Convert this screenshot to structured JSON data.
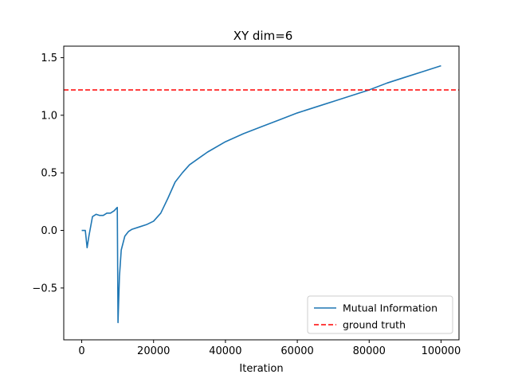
{
  "chart_data": {
    "type": "line",
    "title": "XY dim=6",
    "xlabel": "Iteration",
    "ylabel": "",
    "xlim": [
      -5000,
      105000
    ],
    "ylim": [
      -0.95,
      1.6
    ],
    "xticks": [
      0,
      20000,
      40000,
      60000,
      80000,
      100000
    ],
    "xtick_labels": [
      "0",
      "20000",
      "40000",
      "60000",
      "80000",
      "100000"
    ],
    "yticks": [
      -0.5,
      0.0,
      0.5,
      1.0,
      1.5
    ],
    "ytick_labels": [
      "−0.5",
      "0.0",
      "0.5",
      "1.0",
      "1.5"
    ],
    "grid": false,
    "legend_position": "lower-right",
    "series": [
      {
        "name": "Mutual Information",
        "color": "#1f77b4",
        "style": "solid",
        "x": [
          0,
          1000,
          1500,
          2000,
          3000,
          4000,
          5000,
          6000,
          7000,
          8000,
          9000,
          9900,
          10100,
          10500,
          11000,
          12000,
          13000,
          14000,
          16000,
          18000,
          20000,
          22000,
          24000,
          25000,
          26000,
          28000,
          30000,
          35000,
          40000,
          45000,
          50000,
          55000,
          60000,
          65000,
          70000,
          75000,
          80000,
          85000,
          90000,
          95000,
          100000
        ],
        "y": [
          0.0,
          0.0,
          -0.15,
          -0.05,
          0.12,
          0.14,
          0.13,
          0.13,
          0.15,
          0.15,
          0.17,
          0.2,
          -0.8,
          -0.4,
          -0.17,
          -0.05,
          -0.01,
          0.01,
          0.03,
          0.05,
          0.08,
          0.15,
          0.28,
          0.35,
          0.42,
          0.5,
          0.57,
          0.68,
          0.77,
          0.84,
          0.9,
          0.96,
          1.02,
          1.07,
          1.12,
          1.17,
          1.22,
          1.28,
          1.33,
          1.38,
          1.43
        ]
      },
      {
        "name": "ground truth",
        "color": "#ff0000",
        "style": "dashed",
        "x": [
          -5000,
          105000
        ],
        "y": [
          1.22,
          1.22
        ]
      }
    ]
  }
}
